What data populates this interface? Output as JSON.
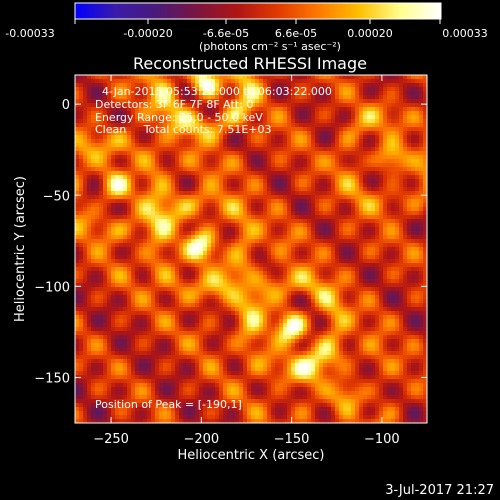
{
  "colorbar": {
    "ticks": [
      "-0.00033",
      "-0.00020",
      "-6.6e-05",
      "6.6e-05",
      "0.00020",
      "0.00033"
    ],
    "unit_label": "(photons cm⁻² s⁻¹ asec⁻²)",
    "stops": [
      "#0000ff",
      "#3a1aa8",
      "#4a1a7a",
      "#7a1540",
      "#b01515",
      "#e23a00",
      "#ff7a00",
      "#ffc000",
      "#ffff90",
      "#ffffff"
    ]
  },
  "chart_data": {
    "type": "heatmap",
    "title": "Reconstructed RHESSI Image",
    "xlabel": "Heliocentric X (arcsec)",
    "ylabel": "Heliocentric Y (arcsec)",
    "xlim": [
      -270,
      -75
    ],
    "ylim": [
      -175,
      16
    ],
    "x_ticks": [
      -250,
      -200,
      -150,
      -100
    ],
    "y_ticks": [
      0,
      -50,
      -100,
      -150
    ],
    "x_tick_labels": [
      "−250",
      "−200",
      "−150",
      "−100"
    ],
    "y_tick_labels": [
      "0",
      "−50",
      "−100",
      "−150"
    ],
    "colormap_range": [
      -0.00033,
      0.00033
    ],
    "sources": [
      {
        "x": -198,
        "y": 12,
        "amplitude": 0.00033
      },
      {
        "x": -200,
        "y": -78,
        "amplitude": 0.00028
      },
      {
        "x": -150,
        "y": -122,
        "amplitude": 0.0003
      },
      {
        "x": -248,
        "y": -45,
        "amplitude": 0.00022
      },
      {
        "x": -95,
        "y": -30,
        "amplitude": 0.0002
      },
      {
        "x": -120,
        "y": -160,
        "amplitude": 0.00012
      }
    ],
    "peak": {
      "x": -190,
      "y": 1
    },
    "annotations": [
      "4-Jan-2015 05:53:22.000 to 06:03:22.000",
      "Detectors: 3F 6F 7F 8F  Att: 0",
      "Energy Range: 25.0 - 50.0 keV",
      "Clean     Total counts: 7.51E+03",
      "Position of Peak = [-190,1]"
    ]
  },
  "footer": {
    "date": "3-Jul-2017 21:27"
  }
}
